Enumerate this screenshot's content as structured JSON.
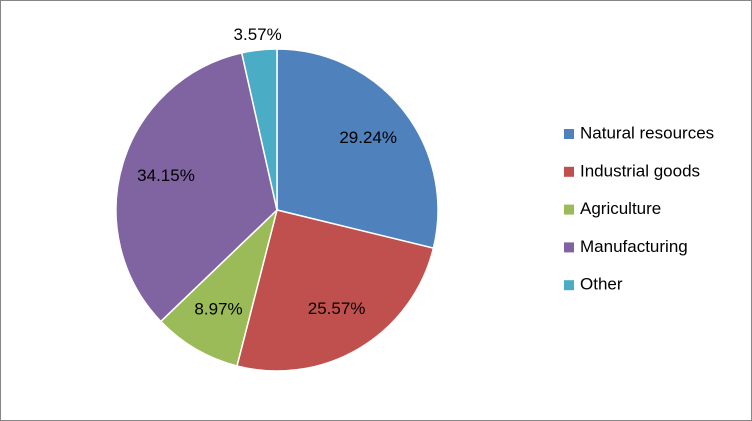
{
  "chart_data": {
    "type": "pie",
    "categories": [
      "Natural resources",
      "Industrial goods",
      "Agriculture",
      "Manufacturing",
      "Other"
    ],
    "values": [
      29.24,
      25.57,
      8.97,
      34.15,
      3.57
    ],
    "value_labels": [
      "29.24%",
      "25.57%",
      "8.97%",
      "34.15%",
      "3.57%"
    ],
    "colors": [
      "#4f81bd",
      "#c0504d",
      "#9bbb59",
      "#8064a2",
      "#4bacc6"
    ],
    "legend": "right"
  }
}
